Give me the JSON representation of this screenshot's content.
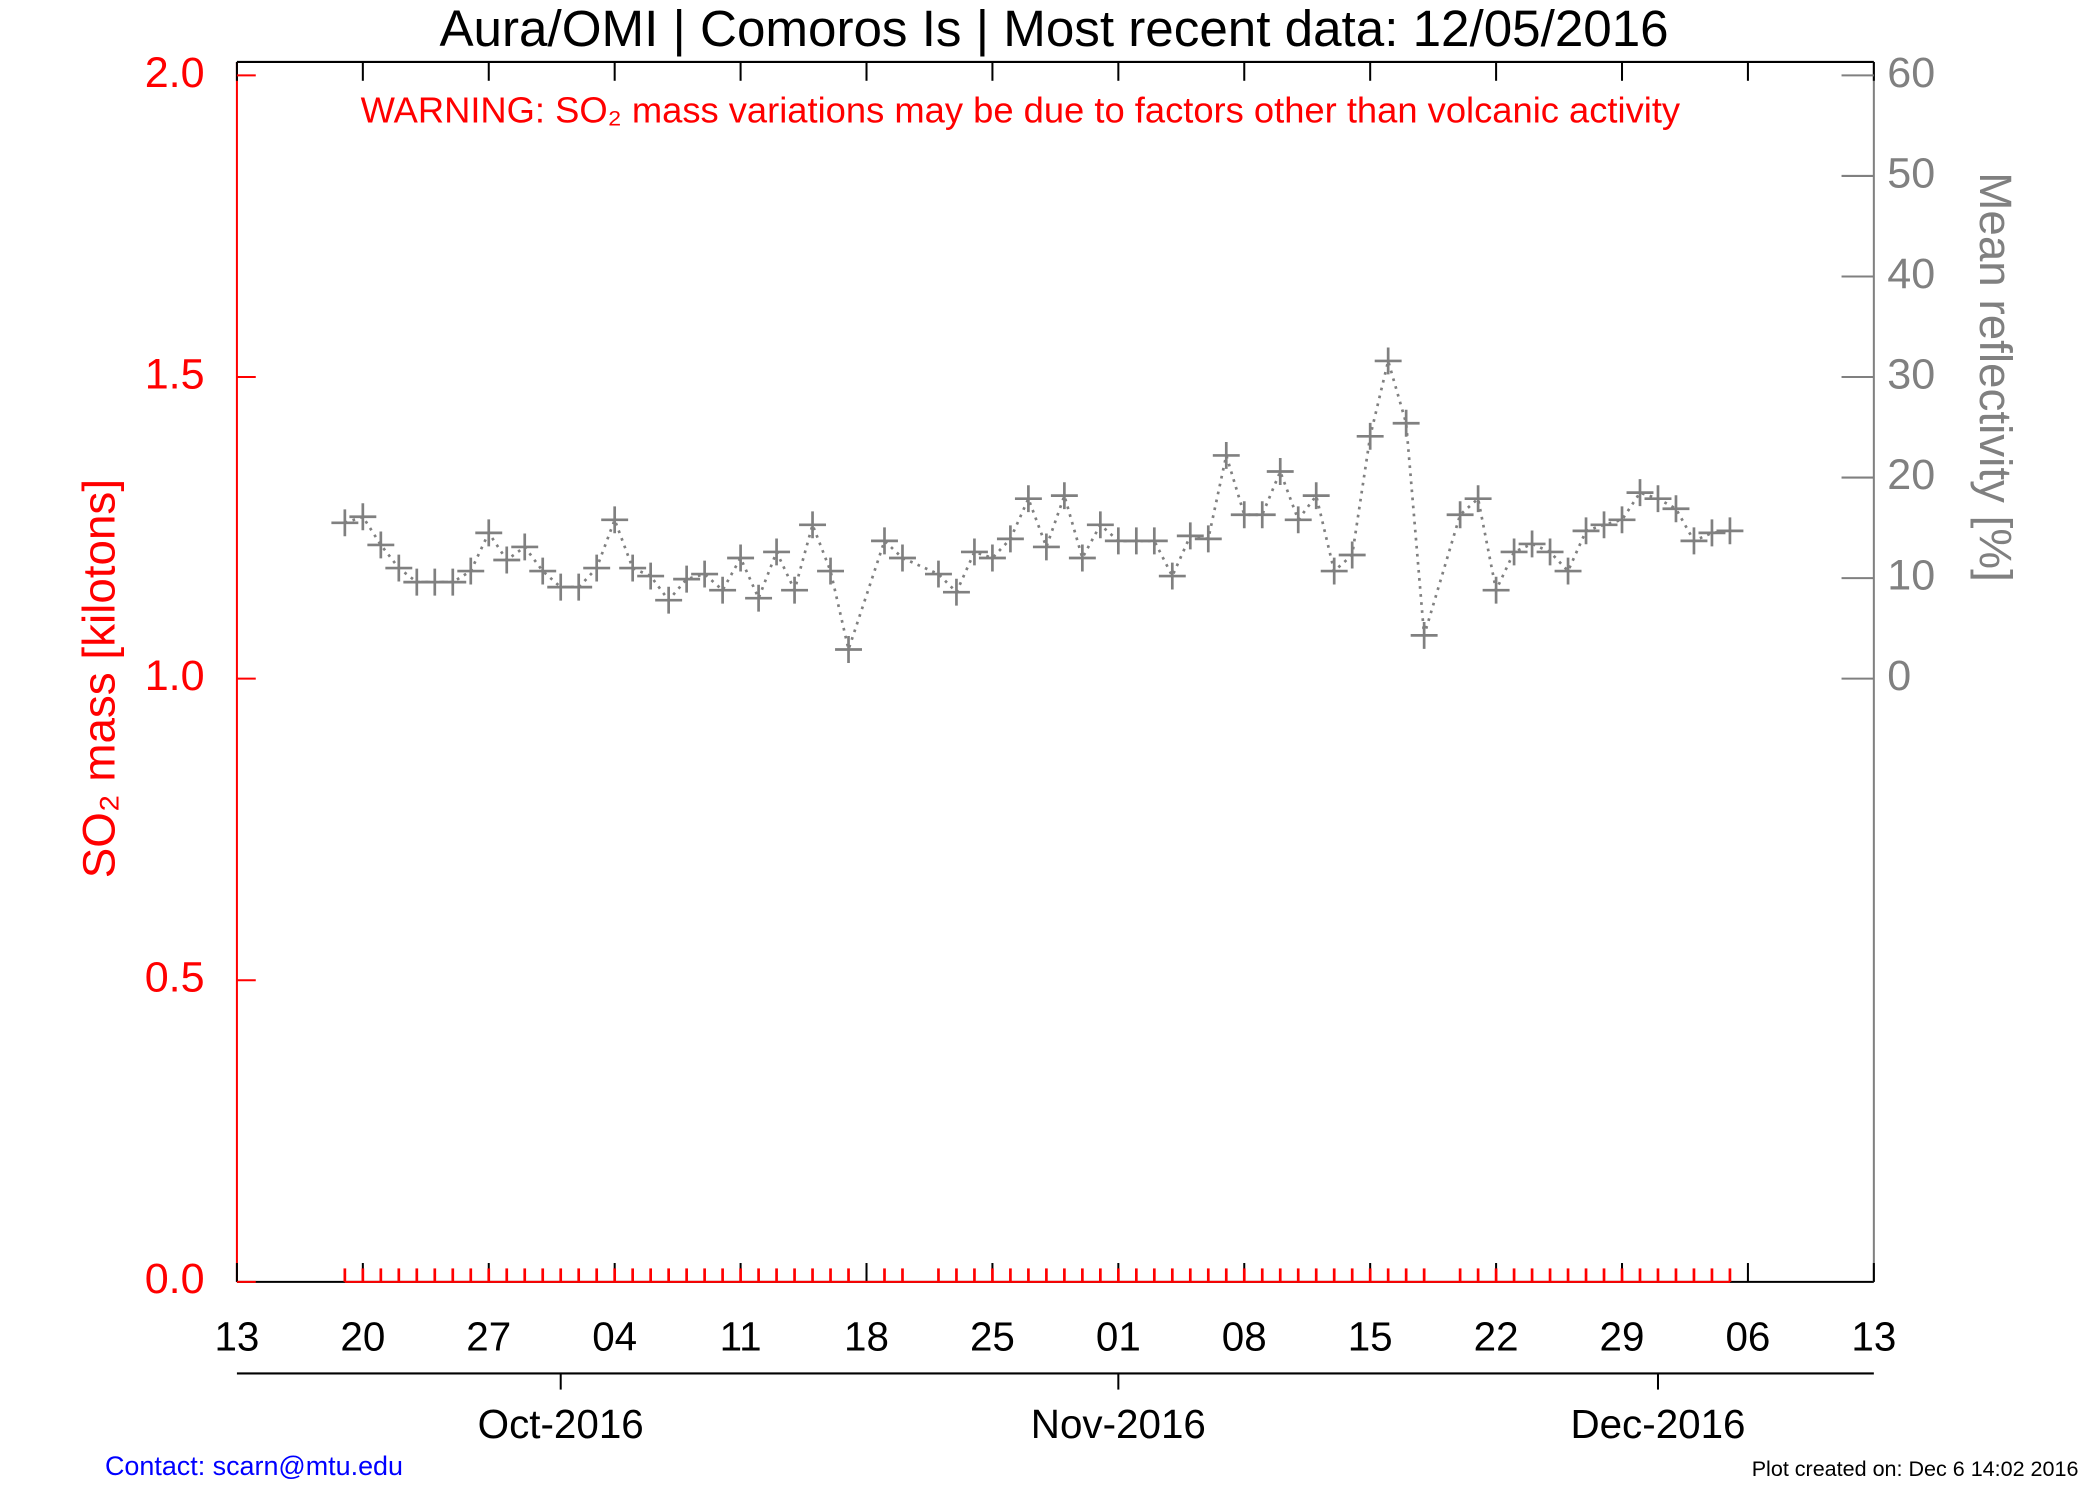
{
  "chart_data": {
    "type": "line",
    "title": "Aura/OMI | Comoros Is | Most recent data: 12/05/2016",
    "annotation": "WARNING: SO₂ mass variations may be due to factors other than volcanic activity",
    "ylabel": "SO₂ mass [kilotons]",
    "y2label": "Mean reflectivity [%]",
    "contact": "Contact: scarn@mtu.edu",
    "footnote": "Plot created on: Dec  6 14:02 2016",
    "xlim": [
      "2016-09-13",
      "2016-12-13"
    ],
    "xticks": [
      {
        "value": "2016-09-13",
        "label": "13"
      },
      {
        "value": "2016-09-20",
        "label": "20"
      },
      {
        "value": "2016-09-27",
        "label": "27"
      },
      {
        "value": "2016-10-04",
        "label": "04"
      },
      {
        "value": "2016-10-11",
        "label": "11"
      },
      {
        "value": "2016-10-18",
        "label": "18"
      },
      {
        "value": "2016-10-25",
        "label": "25"
      },
      {
        "value": "2016-11-01",
        "label": "01"
      },
      {
        "value": "2016-11-08",
        "label": "08"
      },
      {
        "value": "2016-11-15",
        "label": "15"
      },
      {
        "value": "2016-11-22",
        "label": "22"
      },
      {
        "value": "2016-11-29",
        "label": "29"
      },
      {
        "value": "2016-12-06",
        "label": "06"
      },
      {
        "value": "2016-12-13",
        "label": "13"
      }
    ],
    "month_ticks": [
      {
        "value": "2016-10-01",
        "label": "Oct-2016"
      },
      {
        "value": "2016-11-01",
        "label": "Nov-2016"
      },
      {
        "value": "2016-12-01",
        "label": "Dec-2016"
      }
    ],
    "ylim": [
      0,
      2
    ],
    "yticks": [
      {
        "value": 0,
        "label": "0.0"
      },
      0.5,
      {
        "value": 1,
        "label": "1.0"
      },
      1.5,
      {
        "value": 2,
        "label": "2.0"
      }
    ],
    "y2lim": [
      -60,
      60
    ],
    "y2ticks": [
      0,
      10,
      20,
      30,
      40,
      50,
      60
    ],
    "x": [
      "2016-09-19",
      "2016-09-20",
      "2016-09-21",
      "2016-09-22",
      "2016-09-23",
      "2016-09-24",
      "2016-09-25",
      "2016-09-26",
      "2016-09-27",
      "2016-09-28",
      "2016-09-29",
      "2016-09-30",
      "2016-10-01",
      "2016-10-02",
      "2016-10-03",
      "2016-10-04",
      "2016-10-05",
      "2016-10-06",
      "2016-10-07",
      "2016-10-08",
      "2016-10-09",
      "2016-10-10",
      "2016-10-11",
      "2016-10-12",
      "2016-10-13",
      "2016-10-14",
      "2016-10-15",
      "2016-10-16",
      "2016-10-17",
      "2016-10-19",
      "2016-10-20",
      "2016-10-22",
      "2016-10-23",
      "2016-10-24",
      "2016-10-25",
      "2016-10-26",
      "2016-10-27",
      "2016-10-28",
      "2016-10-29",
      "2016-10-30",
      "2016-10-31",
      "2016-11-01",
      "2016-11-02",
      "2016-11-03",
      "2016-11-04",
      "2016-11-05",
      "2016-11-06",
      "2016-11-07",
      "2016-11-08",
      "2016-11-09",
      "2016-11-10",
      "2016-11-11",
      "2016-11-12",
      "2016-11-13",
      "2016-11-14",
      "2016-11-15",
      "2016-11-16",
      "2016-11-17",
      "2016-11-18",
      "2016-11-20",
      "2016-11-21",
      "2016-11-22",
      "2016-11-23",
      "2016-11-24",
      "2016-11-25",
      "2016-11-26",
      "2016-11-27",
      "2016-11-28",
      "2016-11-29",
      "2016-11-30",
      "2016-12-01",
      "2016-12-02",
      "2016-12-03",
      "2016-12-04",
      "2016-12-05"
    ],
    "series": [
      {
        "color": "#ff0000",
        "marker": "tick",
        "values": [
          0,
          0,
          0,
          0,
          0,
          0,
          0,
          0,
          0,
          0,
          0,
          0,
          0,
          0,
          0,
          0,
          0,
          0,
          0,
          0,
          0,
          0,
          0,
          0,
          0,
          0,
          0,
          0,
          0,
          0,
          0,
          0,
          0,
          0,
          0,
          0,
          0,
          0,
          0,
          0,
          0,
          0,
          0,
          0,
          0,
          0,
          0,
          0,
          0,
          0,
          0,
          0,
          0,
          0,
          0,
          0,
          0,
          0,
          0,
          0,
          0,
          0,
          0,
          0,
          0,
          0,
          0,
          0,
          0,
          0,
          0,
          0,
          0,
          0,
          0
        ]
      },
      {
        "color": "#808080",
        "axis": "y2",
        "marker": "plus",
        "linestyle": "dotted",
        "values": [
          15.5,
          16.1,
          13.3,
          11.0,
          9.6,
          9.6,
          9.6,
          10.7,
          14.5,
          11.8,
          13.1,
          10.7,
          9.1,
          9.1,
          11.0,
          15.8,
          11.0,
          10.2,
          7.8,
          9.9,
          10.4,
          8.8,
          12.0,
          8.0,
          12.6,
          8.8,
          15.3,
          10.7,
          2.9,
          13.7,
          12.0,
          10.4,
          8.6,
          12.6,
          12.0,
          13.9,
          17.9,
          13.1,
          18.2,
          12.0,
          15.3,
          13.7,
          13.7,
          13.7,
          10.2,
          14.2,
          13.9,
          22.2,
          16.3,
          16.3,
          20.6,
          15.8,
          18.2,
          10.7,
          12.3,
          24.1,
          31.6,
          25.4,
          4.3,
          16.3,
          17.9,
          8.8,
          12.6,
          13.4,
          12.6,
          10.7,
          14.7,
          15.3,
          15.8,
          18.5,
          17.9,
          16.9,
          13.7,
          14.5,
          14.7
        ]
      }
    ]
  }
}
